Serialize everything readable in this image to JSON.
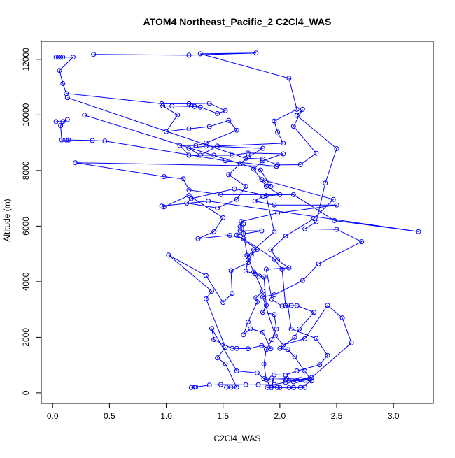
{
  "chart_data": {
    "type": "scatter",
    "title": "ATOM4 Northeast_Pacific_2 C2Cl4_WAS",
    "xlabel": "C2Cl4_WAS",
    "ylabel": "Altitude (m)",
    "xlim": [
      -0.1,
      3.35
    ],
    "ylim": [
      -380,
      12650
    ],
    "x_ticks": [
      0.0,
      0.5,
      1.0,
      1.5,
      2.0,
      2.5,
      3.0
    ],
    "x_tick_labels": [
      "0.0",
      "0.5",
      "1.0",
      "1.5",
      "2.0",
      "2.5",
      "3.0"
    ],
    "y_ticks": [
      0,
      2000,
      4000,
      6000,
      8000,
      10000,
      12000
    ],
    "y_tick_labels": [
      "0",
      "2000",
      "4000",
      "6000",
      "8000",
      "10000",
      "12000"
    ],
    "grid": false,
    "legend": "none",
    "marker": "open-circle",
    "connect_points": true,
    "color": "#0000ff",
    "series": [
      {
        "points": [
          [
            0.03,
            12080
          ],
          [
            0.05,
            12080
          ],
          [
            0.07,
            12080
          ],
          [
            0.09,
            12080
          ],
          [
            0.18,
            12080
          ],
          [
            0.06,
            11600
          ],
          [
            0.09,
            11130
          ],
          [
            0.12,
            10770
          ],
          [
            0.96,
            10400
          ],
          [
            1.2,
            10400
          ],
          [
            1.38,
            10420
          ],
          [
            1.52,
            10150
          ],
          [
            1.45,
            10050
          ],
          [
            1.3,
            10280
          ],
          [
            1.22,
            10320
          ],
          [
            1.25,
            10300
          ],
          [
            1.05,
            10320
          ],
          [
            0.97,
            10320
          ],
          [
            1.1,
            10000
          ],
          [
            1.0,
            9400
          ],
          [
            1.2,
            9500
          ],
          [
            1.38,
            9580
          ],
          [
            1.55,
            9800
          ],
          [
            1.62,
            9450
          ],
          [
            1.35,
            8990
          ],
          [
            1.26,
            8900
          ],
          [
            1.12,
            8900
          ],
          [
            1.2,
            8550
          ],
          [
            1.42,
            8550
          ],
          [
            1.58,
            8550
          ],
          [
            1.72,
            8630
          ],
          [
            2.03,
            8600
          ],
          [
            1.85,
            8350
          ],
          [
            1.77,
            8050
          ],
          [
            1.88,
            7430
          ],
          [
            2.0,
            7130
          ],
          [
            1.85,
            7070
          ],
          [
            1.78,
            6900
          ],
          [
            1.95,
            6760
          ],
          [
            2.5,
            6760
          ],
          [
            1.98,
            6470
          ],
          [
            1.66,
            6170
          ],
          [
            1.65,
            5980
          ],
          [
            1.65,
            5830
          ],
          [
            1.84,
            5830
          ],
          [
            1.62,
            5680
          ],
          [
            1.8,
            5160
          ],
          [
            1.75,
            4960
          ],
          [
            1.71,
            4950
          ],
          [
            1.77,
            4350
          ],
          [
            1.82,
            4200
          ],
          [
            1.86,
            4170
          ],
          [
            1.88,
            3150
          ],
          [
            1.85,
            2900
          ],
          [
            1.95,
            2820
          ],
          [
            1.97,
            2300
          ],
          [
            1.93,
            1920
          ],
          [
            1.88,
            1560
          ],
          [
            1.86,
            1040
          ],
          [
            1.88,
            480
          ],
          [
            1.92,
            190
          ],
          [
            2.0,
            190
          ],
          [
            2.12,
            190
          ],
          [
            2.22,
            190
          ]
        ]
      },
      {
        "points": [
          [
            0.03,
            9760
          ],
          [
            0.09,
            9760
          ],
          [
            0.13,
            9830
          ],
          [
            0.07,
            9620
          ],
          [
            0.08,
            9100
          ],
          [
            0.12,
            9100
          ],
          [
            0.14,
            9100
          ],
          [
            0.35,
            9080
          ],
          [
            0.46,
            9060
          ],
          [
            1.52,
            8350
          ],
          [
            1.97,
            8150
          ],
          [
            0.2,
            8280
          ],
          [
            0.98,
            7780
          ],
          [
            1.15,
            7700
          ],
          [
            1.2,
            7300
          ],
          [
            1.48,
            7130
          ],
          [
            2.12,
            7130
          ],
          [
            2.48,
            6200
          ],
          [
            3.22,
            5800
          ],
          [
            1.37,
            6900
          ],
          [
            0.96,
            6720
          ],
          [
            0.98,
            6690
          ],
          [
            1.2,
            7100
          ],
          [
            1.5,
            6300
          ],
          [
            1.42,
            5800
          ],
          [
            1.28,
            5550
          ],
          [
            1.56,
            5670
          ],
          [
            1.68,
            5550
          ],
          [
            1.95,
            4820
          ],
          [
            2.02,
            4440
          ],
          [
            2.05,
            3140
          ],
          [
            2.1,
            3140
          ],
          [
            2.15,
            3140
          ],
          [
            2.3,
            2900
          ],
          [
            2.17,
            2300
          ],
          [
            2.13,
            2000
          ],
          [
            2.0,
            1600
          ],
          [
            2.07,
            1560
          ],
          [
            2.13,
            1300
          ],
          [
            2.22,
            780
          ],
          [
            2.28,
            430
          ],
          [
            2.18,
            190
          ],
          [
            2.12,
            190
          ],
          [
            2.08,
            190
          ],
          [
            1.98,
            190
          ]
        ]
      },
      {
        "points": [
          [
            0.36,
            12180
          ],
          [
            1.2,
            12150
          ],
          [
            1.79,
            12230
          ],
          [
            1.3,
            12200
          ],
          [
            2.08,
            11320
          ],
          [
            2.15,
            10200
          ],
          [
            1.95,
            9780
          ],
          [
            1.98,
            9380
          ],
          [
            2.03,
            8980
          ],
          [
            1.45,
            8880
          ],
          [
            1.3,
            8550
          ],
          [
            1.2,
            8800
          ],
          [
            1.35,
            8880
          ],
          [
            1.85,
            8800
          ],
          [
            1.72,
            8480
          ],
          [
            1.65,
            8250
          ],
          [
            1.55,
            7850
          ],
          [
            1.7,
            7430
          ],
          [
            1.62,
            6960
          ],
          [
            1.45,
            6650
          ],
          [
            1.18,
            6830
          ],
          [
            1.22,
            6990
          ],
          [
            1.6,
            7340
          ],
          [
            1.88,
            7100
          ],
          [
            1.95,
            5790
          ],
          [
            1.77,
            5150
          ],
          [
            1.72,
            4680
          ],
          [
            1.57,
            4400
          ],
          [
            1.58,
            3580
          ],
          [
            1.5,
            3250
          ],
          [
            1.35,
            4220
          ],
          [
            1.02,
            4960
          ],
          [
            1.4,
            3660
          ],
          [
            1.35,
            3380
          ],
          [
            1.52,
            1640
          ],
          [
            1.45,
            1260
          ],
          [
            1.52,
            1050
          ],
          [
            1.62,
            200
          ],
          [
            1.57,
            200
          ],
          [
            1.53,
            200
          ]
        ]
      },
      {
        "points": [
          [
            0.28,
            9990
          ],
          [
            1.83,
            8020
          ],
          [
            1.92,
            7430
          ],
          [
            1.84,
            7680
          ],
          [
            2.47,
            6960
          ],
          [
            2.3,
            6270
          ],
          [
            2.05,
            5640
          ],
          [
            1.92,
            5150
          ],
          [
            1.98,
            4780
          ],
          [
            2.08,
            4500
          ],
          [
            1.88,
            4450
          ],
          [
            1.93,
            3360
          ],
          [
            2.02,
            3120
          ],
          [
            2.07,
            3160
          ],
          [
            2.1,
            2300
          ],
          [
            2.32,
            1960
          ],
          [
            2.42,
            1350
          ],
          [
            2.35,
            1010
          ],
          [
            2.15,
            790
          ],
          [
            2.05,
            640
          ],
          [
            1.95,
            650
          ],
          [
            1.93,
            190
          ],
          [
            1.89,
            190
          ]
        ]
      },
      {
        "points": [
          [
            0.13,
            10620
          ],
          [
            1.7,
            8440
          ],
          [
            1.85,
            8420
          ],
          [
            1.98,
            8200
          ],
          [
            2.18,
            8210
          ],
          [
            2.32,
            8620
          ],
          [
            2.12,
            9590
          ],
          [
            2.2,
            10200
          ],
          [
            2.15,
            9980
          ],
          [
            2.5,
            8790
          ],
          [
            2.4,
            7550
          ],
          [
            2.32,
            6150
          ],
          [
            2.22,
            5900
          ],
          [
            2.5,
            5880
          ],
          [
            2.72,
            5440
          ],
          [
            2.34,
            4640
          ],
          [
            2.2,
            4040
          ],
          [
            1.95,
            3530
          ],
          [
            1.85,
            3450
          ],
          [
            1.96,
            2050
          ],
          [
            2.03,
            1730
          ],
          [
            2.22,
            1950
          ],
          [
            2.42,
            3150
          ],
          [
            2.55,
            2700
          ],
          [
            2.63,
            1800
          ],
          [
            2.28,
            550
          ],
          [
            2.18,
            480
          ],
          [
            2.06,
            520
          ],
          [
            1.93,
            530
          ]
        ]
      },
      {
        "points": [
          [
            1.68,
            6080
          ],
          [
            1.68,
            5730
          ],
          [
            1.72,
            4780
          ],
          [
            1.7,
            4380
          ],
          [
            1.78,
            4280
          ],
          [
            1.85,
            3660
          ],
          [
            1.79,
            3420
          ],
          [
            1.8,
            3270
          ],
          [
            1.72,
            2550
          ],
          [
            1.68,
            2090
          ],
          [
            1.74,
            2310
          ],
          [
            1.85,
            2180
          ],
          [
            1.92,
            1590
          ],
          [
            1.84,
            1700
          ],
          [
            1.72,
            1590
          ],
          [
            1.62,
            1600
          ],
          [
            1.58,
            1600
          ],
          [
            1.42,
            1920
          ],
          [
            1.4,
            2320
          ],
          [
            1.62,
            790
          ],
          [
            1.8,
            720
          ],
          [
            1.86,
            510
          ],
          [
            1.92,
            460
          ],
          [
            2.05,
            480
          ],
          [
            2.08,
            430
          ],
          [
            2.15,
            440
          ],
          [
            2.22,
            450
          ],
          [
            2.26,
            500
          ],
          [
            2.18,
            480
          ],
          [
            2.12,
            400
          ],
          [
            2.05,
            380
          ],
          [
            1.95,
            300
          ],
          [
            1.81,
            290
          ],
          [
            1.7,
            290
          ],
          [
            1.48,
            300
          ],
          [
            1.38,
            280
          ],
          [
            1.26,
            210
          ],
          [
            1.25,
            200
          ],
          [
            1.22,
            190
          ]
        ]
      }
    ]
  }
}
